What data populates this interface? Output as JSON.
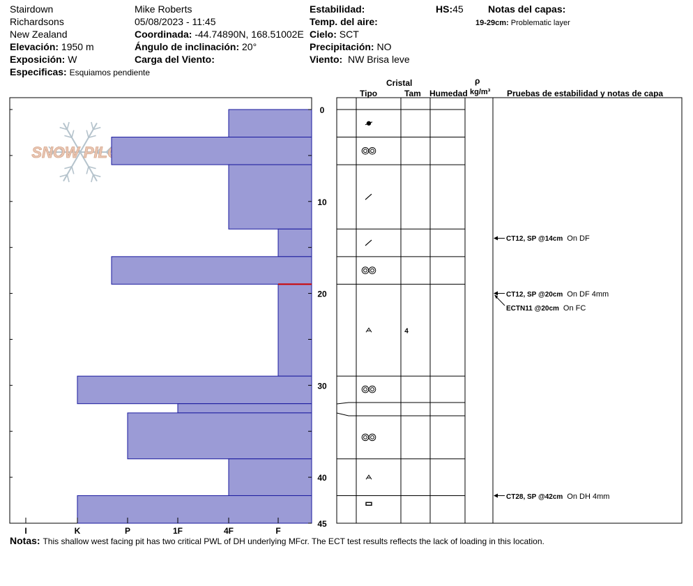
{
  "header": {
    "location_name": "Stairdown",
    "region": "Richardsons",
    "country": "New Zealand",
    "observer": "Mike Roberts",
    "datetime": "05/08/2023 - 11:45",
    "elevation_label": "Elevación:",
    "elevation_value": "1950 m",
    "aspect_label": "Exposición:",
    "aspect_value": "W",
    "specifics_label": "Especificas:",
    "specifics_value": "Esquiamos pendiente",
    "coord_label": "Coordinada:",
    "coord_value": "-44.74890N, 168.51002E",
    "slope_label": "Ángulo de inclinación:",
    "slope_value": "20°",
    "wind_load_label": "Carga del Viento:",
    "stability_label": "Estabilidad:",
    "air_temp_label": "Temp. del aire:",
    "sky_label": "Cielo:",
    "sky_value": "SCT",
    "precip_label": "Precipitación:",
    "precip_value": "NO",
    "wind_label": "Viento:",
    "wind_value": "NW Brisa leve",
    "hs_label": "HS:",
    "hs_value": "45",
    "layer_notes_label": "Notas del capas:",
    "layer_note_range": "19-29cm:",
    "layer_note_text": "Problematic layer"
  },
  "columns": {
    "crystal": "Cristal",
    "type": "Tipo",
    "size": "Tam",
    "moisture": "Humedad",
    "density_symbol": "ρ",
    "density_unit": "kg/m³",
    "tests": "Pruebas de estabilidad y notas de capa"
  },
  "footer": {
    "notes_label": "Notas:",
    "notes_text": "This shallow west facing pit has two critical PWL of DH underlying MFcr. The ECT test results reflects the lack of loading in this location."
  },
  "logo": {
    "text": "SNOW PILOT"
  },
  "colors": {
    "layer_fill": "#9b9bd6",
    "layer_stroke": "#1a1a9e",
    "critical_line": "#cc0000"
  },
  "chart_data": {
    "type": "bar",
    "orientation": "horizontal",
    "y_axis": {
      "label": "",
      "range": [
        0,
        45
      ],
      "ticks": [
        "0",
        "10",
        "20",
        "30",
        "40",
        "45"
      ],
      "inverted": true
    },
    "hardness_scale": [
      "I",
      "K",
      "P",
      "1F",
      "4F",
      "F"
    ],
    "layers": [
      {
        "top": 0,
        "bottom": 3,
        "hardness": "4F"
      },
      {
        "top": 3,
        "bottom": 6,
        "hardness": "K+"
      },
      {
        "top": 6,
        "bottom": 13,
        "hardness": "4F"
      },
      {
        "top": 13,
        "bottom": 16,
        "hardness": "F"
      },
      {
        "top": 16,
        "bottom": 19,
        "hardness": "K+"
      },
      {
        "top": 19,
        "bottom": 29,
        "hardness": "F"
      },
      {
        "top": 29,
        "bottom": 32,
        "hardness": "K"
      },
      {
        "top": 32,
        "bottom": 33,
        "hardness": "1F"
      },
      {
        "top": 33,
        "bottom": 38,
        "hardness": "P"
      },
      {
        "top": 38,
        "bottom": 42,
        "hardness": "4F"
      },
      {
        "top": 42,
        "bottom": 45,
        "hardness": "K"
      }
    ],
    "critical_depth": 19,
    "crystal_rows": [
      {
        "top": 0,
        "bottom": 3,
        "form": "MF-crust",
        "size": ""
      },
      {
        "top": 3,
        "bottom": 6,
        "form": "melt-clusters",
        "size": ""
      },
      {
        "top": 6,
        "bottom": 13,
        "form": "rounded-faceted",
        "size": ""
      },
      {
        "top": 13,
        "bottom": 16,
        "form": "rounded-faceted",
        "size": ""
      },
      {
        "top": 16,
        "bottom": 19,
        "form": "melt-clusters",
        "size": ""
      },
      {
        "top": 19,
        "bottom": 29,
        "form": "depth-hoar",
        "size": "4"
      },
      {
        "top": 29,
        "bottom": 32,
        "form": "melt-clusters",
        "size": ""
      },
      {
        "top": 32,
        "bottom": 33,
        "form": "",
        "size": ""
      },
      {
        "top": 33,
        "bottom": 38,
        "form": "melt-clusters",
        "size": ""
      },
      {
        "top": 38,
        "bottom": 42,
        "form": "depth-hoar",
        "size": ""
      },
      {
        "top": 42,
        "bottom": 45,
        "form": "ice-formation",
        "size": ""
      }
    ],
    "tests": [
      {
        "depth": 14,
        "code": "CT12, SP @14cm",
        "note": "On DF"
      },
      {
        "depth": 20,
        "code": "CT12, SP @20cm",
        "note": "On DF 4mm"
      },
      {
        "depth": 20,
        "code": "ECTN11 @20cm",
        "note": "On FC"
      },
      {
        "depth": 42,
        "code": "CT28, SP @42cm",
        "note": "On DH 4mm"
      }
    ]
  }
}
